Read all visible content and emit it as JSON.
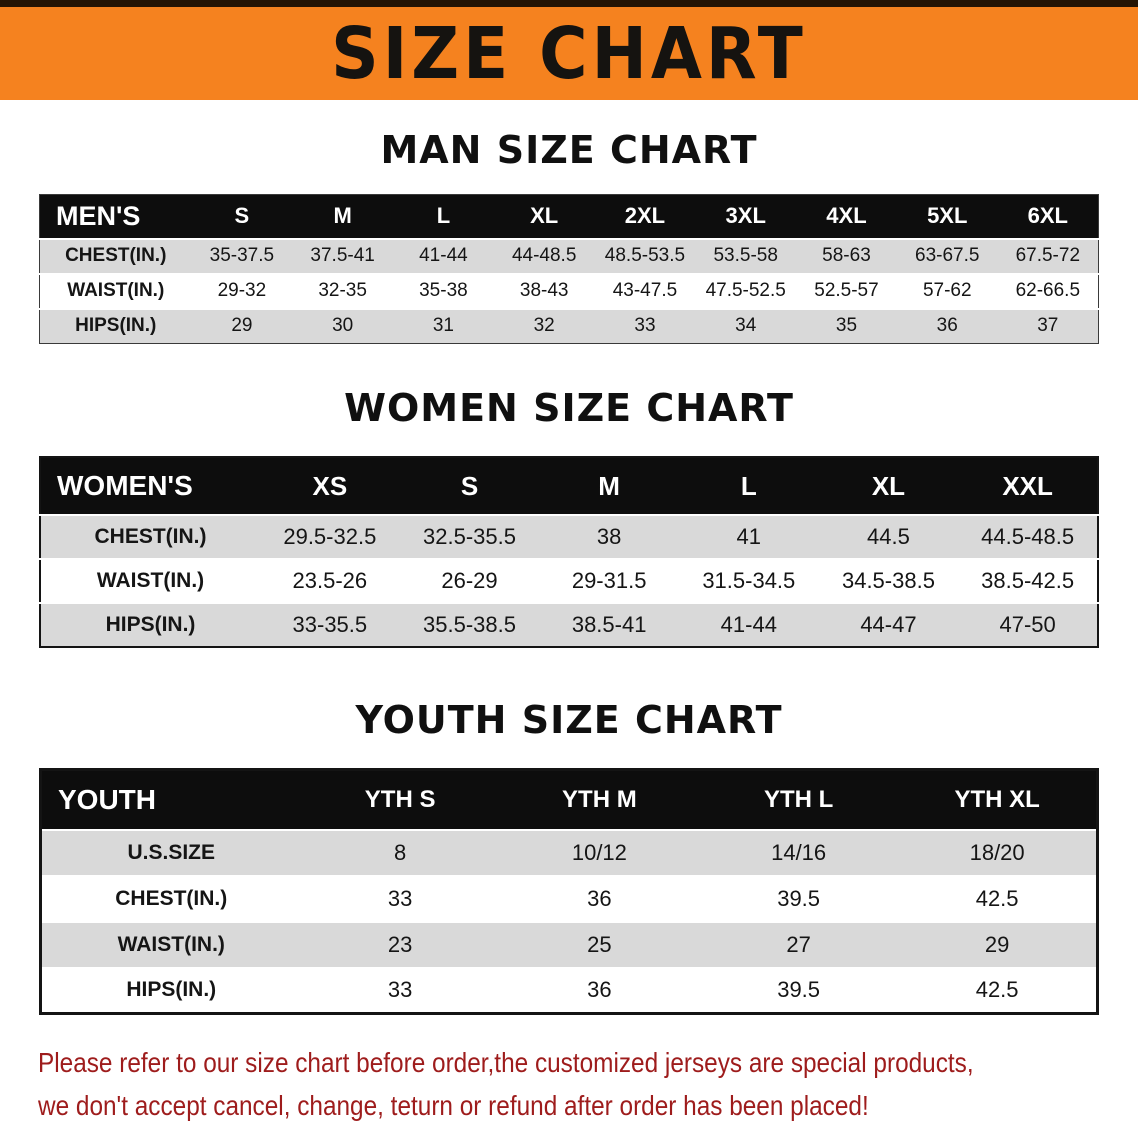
{
  "banner": {
    "title": "SIZE CHART",
    "bg_color": "#f5821f"
  },
  "colors": {
    "table_header_bg": "#0d0d0d",
    "row_stripe": "#d9d9d9",
    "disclaimer_text": "#9e1c1c"
  },
  "sections": [
    {
      "title": "MAN SIZE CHART",
      "table": {
        "header": [
          "MEN'S",
          "S",
          "M",
          "L",
          "XL",
          "2XL",
          "3XL",
          "4XL",
          "5XL",
          "6XL"
        ],
        "rows": [
          [
            "CHEST(IN.)",
            "35-37.5",
            "37.5-41",
            "41-44",
            "44-48.5",
            "48.5-53.5",
            "53.5-58",
            "58-63",
            "63-67.5",
            "67.5-72"
          ],
          [
            "WAIST(IN.)",
            "29-32",
            "32-35",
            "35-38",
            "38-43",
            "43-47.5",
            "47.5-52.5",
            "52.5-57",
            "57-62",
            "62-66.5"
          ],
          [
            "HIPS(IN.)",
            "29",
            "30",
            "31",
            "32",
            "33",
            "34",
            "35",
            "36",
            "37"
          ]
        ]
      }
    },
    {
      "title": "WOMEN SIZE CHART",
      "table": {
        "header": [
          "WOMEN'S",
          "XS",
          "S",
          "M",
          "L",
          "XL",
          "XXL"
        ],
        "rows": [
          [
            "CHEST(IN.)",
            "29.5-32.5",
            "32.5-35.5",
            "38",
            "41",
            "44.5",
            "44.5-48.5"
          ],
          [
            "WAIST(IN.)",
            "23.5-26",
            "26-29",
            "29-31.5",
            "31.5-34.5",
            "34.5-38.5",
            "38.5-42.5"
          ],
          [
            "HIPS(IN.)",
            "33-35.5",
            "35.5-38.5",
            "38.5-41",
            "41-44",
            "44-47",
            "47-50"
          ]
        ]
      }
    },
    {
      "title": "YOUTH SIZE CHART",
      "table": {
        "header": [
          "YOUTH",
          "YTH S",
          "YTH M",
          "YTH L",
          "YTH XL"
        ],
        "rows": [
          [
            "U.S.SIZE",
            "8",
            "10/12",
            "14/16",
            "18/20"
          ],
          [
            "CHEST(IN.)",
            "33",
            "36",
            "39.5",
            "42.5"
          ],
          [
            "WAIST(IN.)",
            "23",
            "25",
            "27",
            "29"
          ],
          [
            "HIPS(IN.)",
            "33",
            "36",
            "39.5",
            "42.5"
          ]
        ]
      }
    }
  ],
  "disclaimer": {
    "line1": "Please refer to our size chart before order,the customized jerseys are special products,",
    "line2": "we don't accept cancel, change, teturn or refund after order has been placed!"
  }
}
